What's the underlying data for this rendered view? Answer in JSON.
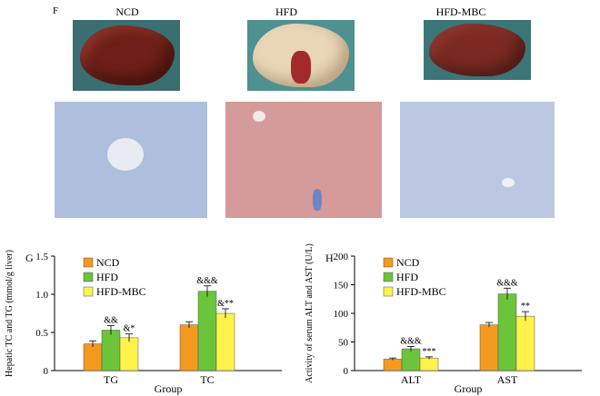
{
  "figure": {
    "panel_f": {
      "letter": "F",
      "groups": [
        "NCD",
        "HFD",
        "HFD-MBC"
      ]
    },
    "colors": {
      "ncd": "#f39a1e",
      "hfd": "#6cc43a",
      "hfd_mbc": "#fff24a",
      "ncd_liver": "#6e1f17",
      "hfd_liver": "#e9d6b6",
      "mbc_liver": "#7a2a22",
      "ncd_stain": "#aebedc",
      "hfd_stain": "#d59a9a",
      "mbc_stain": "#bcc8e2"
    }
  },
  "chart_data": [
    {
      "panel": "G",
      "type": "bar",
      "ylabel": "Hepatic TC and TG (mmol/g liver)",
      "xlabel": "Group",
      "categories": [
        "TG",
        "TC"
      ],
      "ylim": [
        0,
        1.5
      ],
      "yticks": [
        "0",
        "0.5",
        "1.0",
        "1.5"
      ],
      "yticks_values": [
        0,
        0.5,
        1.0,
        1.5
      ],
      "legend": "top-left",
      "series": [
        {
          "name": "NCD",
          "values": [
            0.35,
            0.6
          ],
          "errors": [
            0.04,
            0.04
          ],
          "labels": [
            "",
            ""
          ]
        },
        {
          "name": "HFD",
          "values": [
            0.53,
            1.04
          ],
          "errors": [
            0.06,
            0.07
          ],
          "labels": [
            "&&",
            "&&&"
          ]
        },
        {
          "name": "HFD-MBC",
          "values": [
            0.43,
            0.75
          ],
          "errors": [
            0.05,
            0.06
          ],
          "labels": [
            "&*",
            "&**"
          ]
        }
      ]
    },
    {
      "panel": "H",
      "type": "bar",
      "ylabel": "Activity of serum ALT and AST (U/L)",
      "xlabel": "Group",
      "categories": [
        "ALT",
        "AST"
      ],
      "ylim": [
        0,
        200
      ],
      "yticks": [
        "0",
        "50",
        "100",
        "150",
        "200"
      ],
      "yticks_values": [
        0,
        50,
        100,
        150,
        200
      ],
      "legend": "top-left",
      "series": [
        {
          "name": "NCD",
          "values": [
            20,
            80
          ],
          "errors": [
            2,
            4
          ],
          "labels": [
            "",
            ""
          ]
        },
        {
          "name": "HFD",
          "values": [
            38,
            134
          ],
          "errors": [
            4,
            10
          ],
          "labels": [
            "&&&",
            "&&&"
          ]
        },
        {
          "name": "HFD-MBC",
          "values": [
            22,
            95
          ],
          "errors": [
            2,
            8
          ],
          "labels": [
            "***",
            "**"
          ]
        }
      ]
    }
  ]
}
